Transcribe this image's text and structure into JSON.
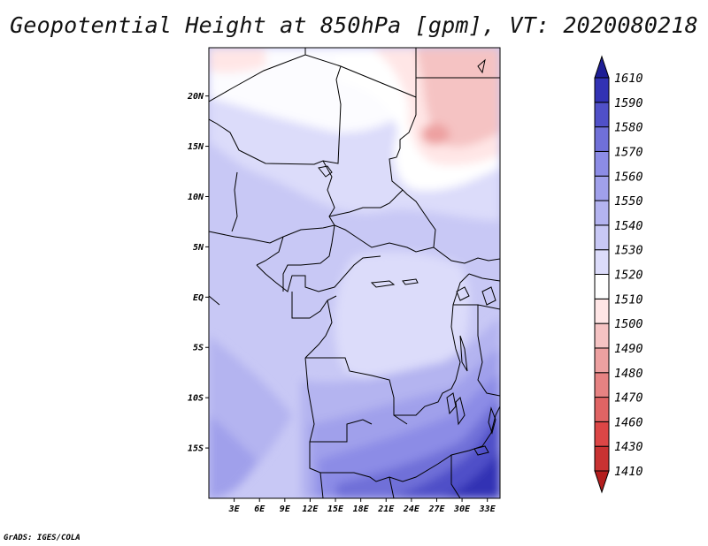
{
  "title": "Geopotential Height at 850hPa [gpm], VT: 2020080218",
  "credit": "GrADS: IGES/COLA",
  "map": {
    "lat_labels": [
      {
        "label": "20N",
        "lat": 20
      },
      {
        "label": "15N",
        "lat": 15
      },
      {
        "label": "10N",
        "lat": 10
      },
      {
        "label": "5N",
        "lat": 5
      },
      {
        "label": "EQ",
        "lat": 0
      },
      {
        "label": "5S",
        "lat": -5
      },
      {
        "label": "10S",
        "lat": -10
      },
      {
        "label": "15S",
        "lat": -15
      }
    ],
    "lon_labels": [
      {
        "label": "3E",
        "lon": 3
      },
      {
        "label": "6E",
        "lon": 6
      },
      {
        "label": "9E",
        "lon": 9
      },
      {
        "label": "12E",
        "lon": 12
      },
      {
        "label": "15E",
        "lon": 15
      },
      {
        "label": "18E",
        "lon": 18
      },
      {
        "label": "21E",
        "lon": 21
      },
      {
        "label": "24E",
        "lon": 24
      },
      {
        "label": "27E",
        "lon": 27
      },
      {
        "label": "30E",
        "lon": 30
      },
      {
        "label": "33E",
        "lon": 33
      }
    ],
    "lat_range": [
      -20,
      24.8
    ],
    "lon_range": [
      0,
      34.5
    ]
  },
  "colorbar": {
    "levels": [
      "1410",
      "1430",
      "1460",
      "1470",
      "1480",
      "1490",
      "1500",
      "1510",
      "1520",
      "1530",
      "1540",
      "1550",
      "1560",
      "1570",
      "1580",
      "1590",
      "1610"
    ],
    "colors": [
      "#b41e1e",
      "#c83232",
      "#dc4646",
      "#e06464",
      "#e68282",
      "#eda0a0",
      "#f5c3c3",
      "#ffe6e6",
      "#ffffff",
      "#dcdcfa",
      "#c8c8f5",
      "#b4b4f0",
      "#a0a0eb",
      "#8c8ce6",
      "#7070d8",
      "#5050c8",
      "#3232b4",
      "#1e1e96"
    ]
  }
}
